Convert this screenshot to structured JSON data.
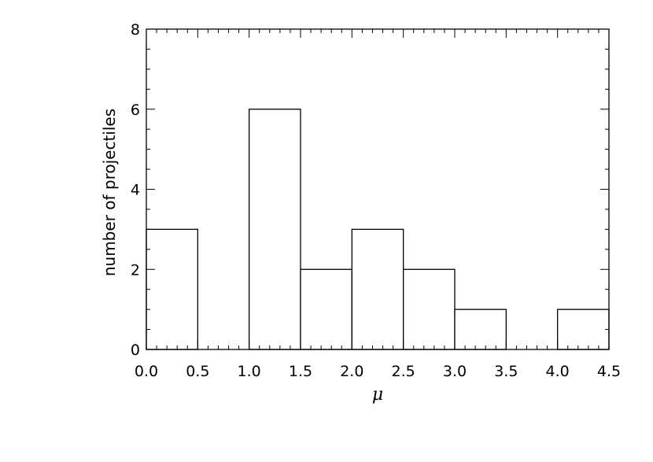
{
  "chart_data": {
    "type": "bar",
    "bin_edges": [
      0.0,
      0.5,
      1.0,
      1.5,
      2.0,
      2.5,
      3.0,
      3.5,
      4.0,
      4.5
    ],
    "values": [
      3,
      0,
      6,
      2,
      3,
      2,
      1,
      0,
      1
    ],
    "xlabel": "μ",
    "ylabel": "number of projectiles",
    "xlim": [
      0.0,
      4.5
    ],
    "ylim": [
      0,
      8
    ],
    "x_ticks": [
      "0.0",
      "0.5",
      "1.0",
      "1.5",
      "2.0",
      "2.5",
      "3.0",
      "3.5",
      "4.0",
      "4.5"
    ],
    "y_ticks": [
      "0",
      "2",
      "4",
      "6",
      "8"
    ],
    "grid": false,
    "bar_fill": "#ffffff",
    "bar_stroke": "#000000"
  }
}
